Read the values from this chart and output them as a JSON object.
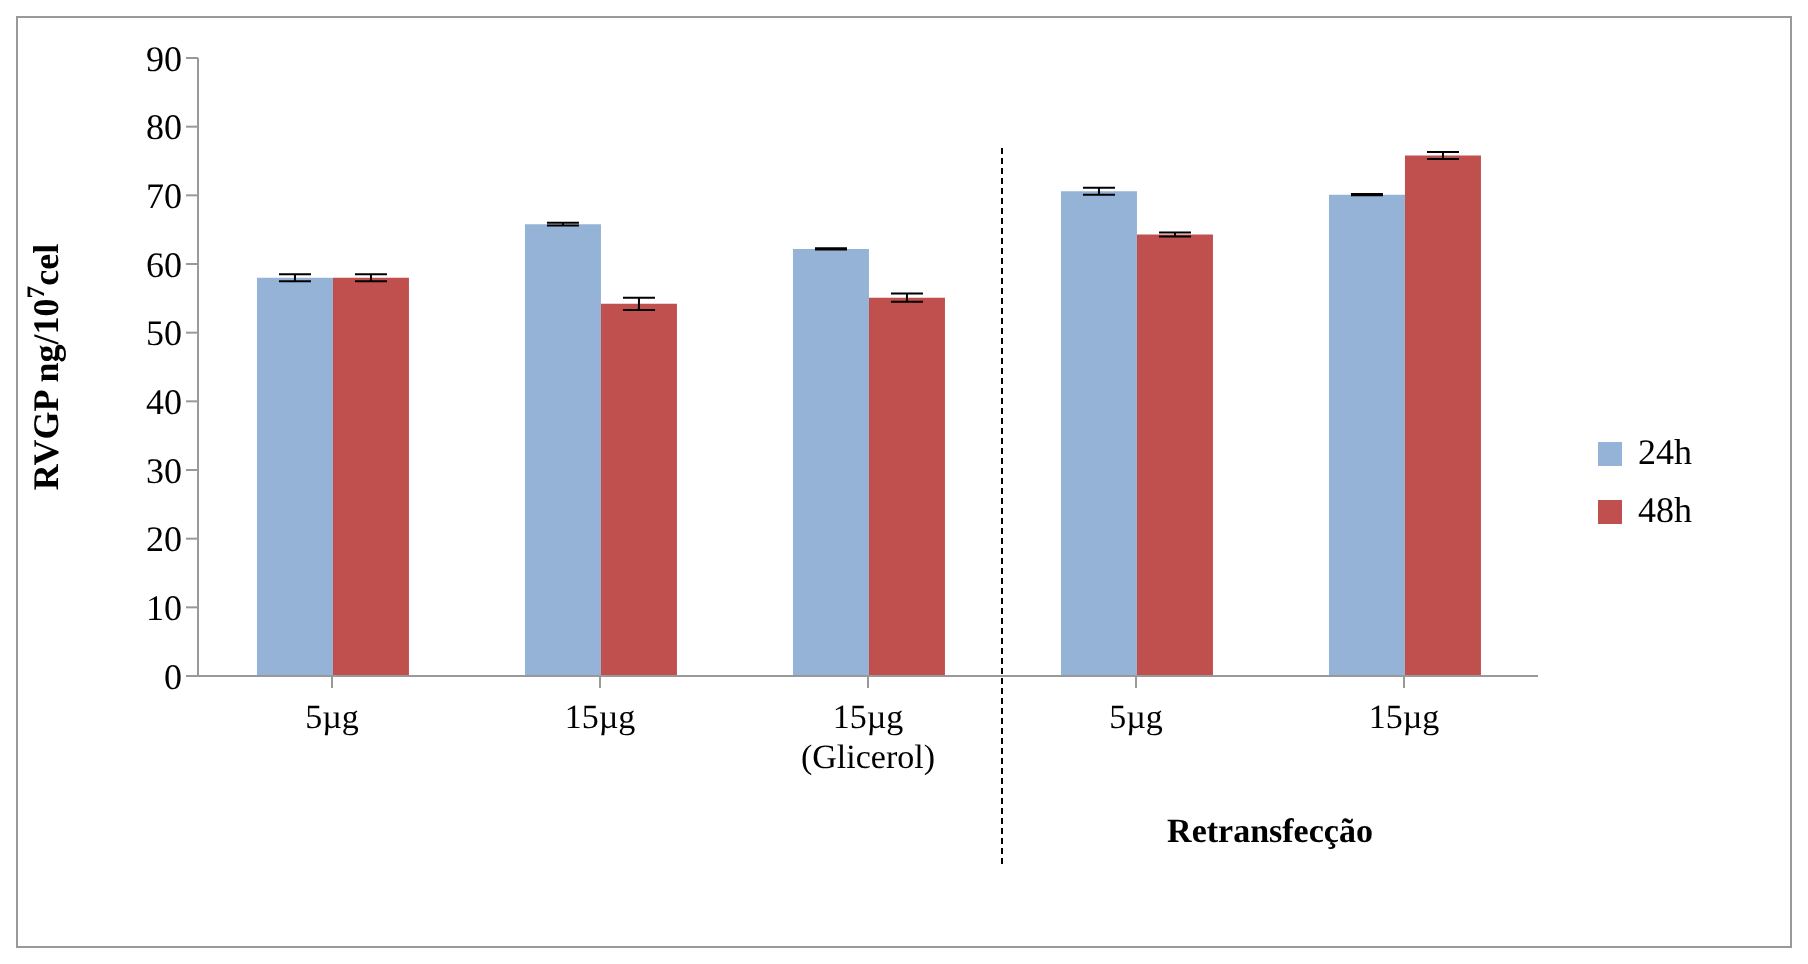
{
  "chart_data": {
    "type": "bar",
    "ylabel": "RVGP ng/10$^{7}$cel",
    "categories": [
      "5µg",
      "15µg",
      "15µg\n(Glicerol)",
      "5µg",
      "15µg"
    ],
    "series": [
      {
        "name": "24h",
        "color": "#95b3d7",
        "values": [
          58,
          65.8,
          62.2,
          70.6,
          70.1
        ],
        "errors": [
          0.5,
          0.2,
          0.1,
          0.5,
          0.1
        ]
      },
      {
        "name": "48h",
        "color": "#c0504d",
        "values": [
          58,
          54.2,
          55.1,
          64.3,
          75.8
        ],
        "errors": [
          0.5,
          0.9,
          0.6,
          0.3,
          0.5
        ]
      }
    ],
    "ylim": [
      0,
      90
    ],
    "yticks": [
      0,
      10,
      20,
      30,
      40,
      50,
      60,
      70,
      80,
      90
    ],
    "legend": "right",
    "annotations": [
      "Retransfecção"
    ]
  }
}
